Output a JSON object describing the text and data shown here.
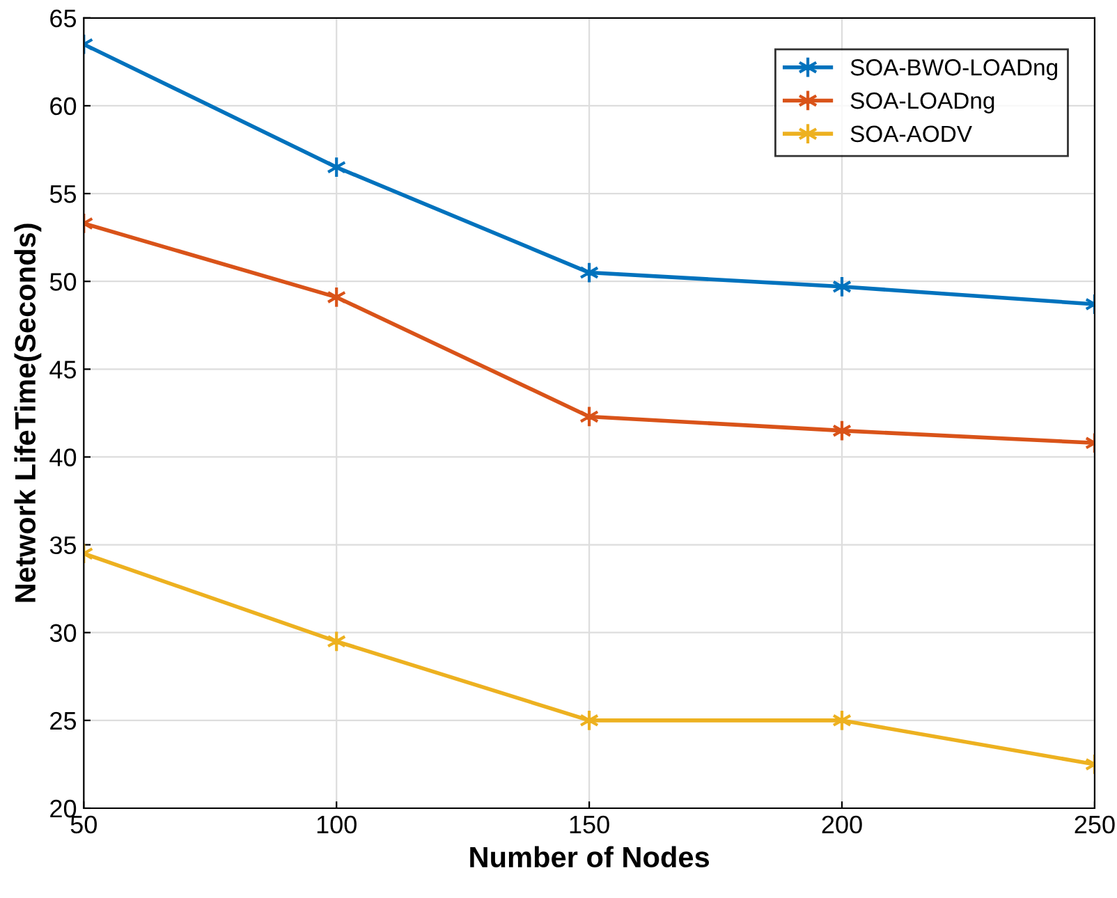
{
  "chart_data": {
    "type": "line",
    "xlabel": "Number of Nodes",
    "ylabel": "Network LifeTime(Seconds)",
    "x": [
      50,
      100,
      150,
      200,
      250
    ],
    "series": [
      {
        "name": "SOA-BWO-LOADng",
        "color": "#0072bd",
        "values": [
          63.5,
          56.5,
          50.5,
          49.7,
          48.7
        ]
      },
      {
        "name": "SOA-LOADng",
        "color": "#d95319",
        "values": [
          53.3,
          49.1,
          42.3,
          41.5,
          40.8
        ]
      },
      {
        "name": "SOA-AODV",
        "color": "#edb120",
        "values": [
          34.5,
          29.5,
          25.0,
          25.0,
          22.5
        ]
      }
    ],
    "xlim": [
      50,
      250
    ],
    "xticks": [
      50,
      100,
      150,
      200,
      250
    ],
    "ylim": [
      20,
      65
    ],
    "yticks": [
      20,
      25,
      30,
      35,
      40,
      45,
      50,
      55,
      60,
      65
    ],
    "grid": true,
    "legend": "top right",
    "marker": "cross",
    "line_style": "solid"
  }
}
